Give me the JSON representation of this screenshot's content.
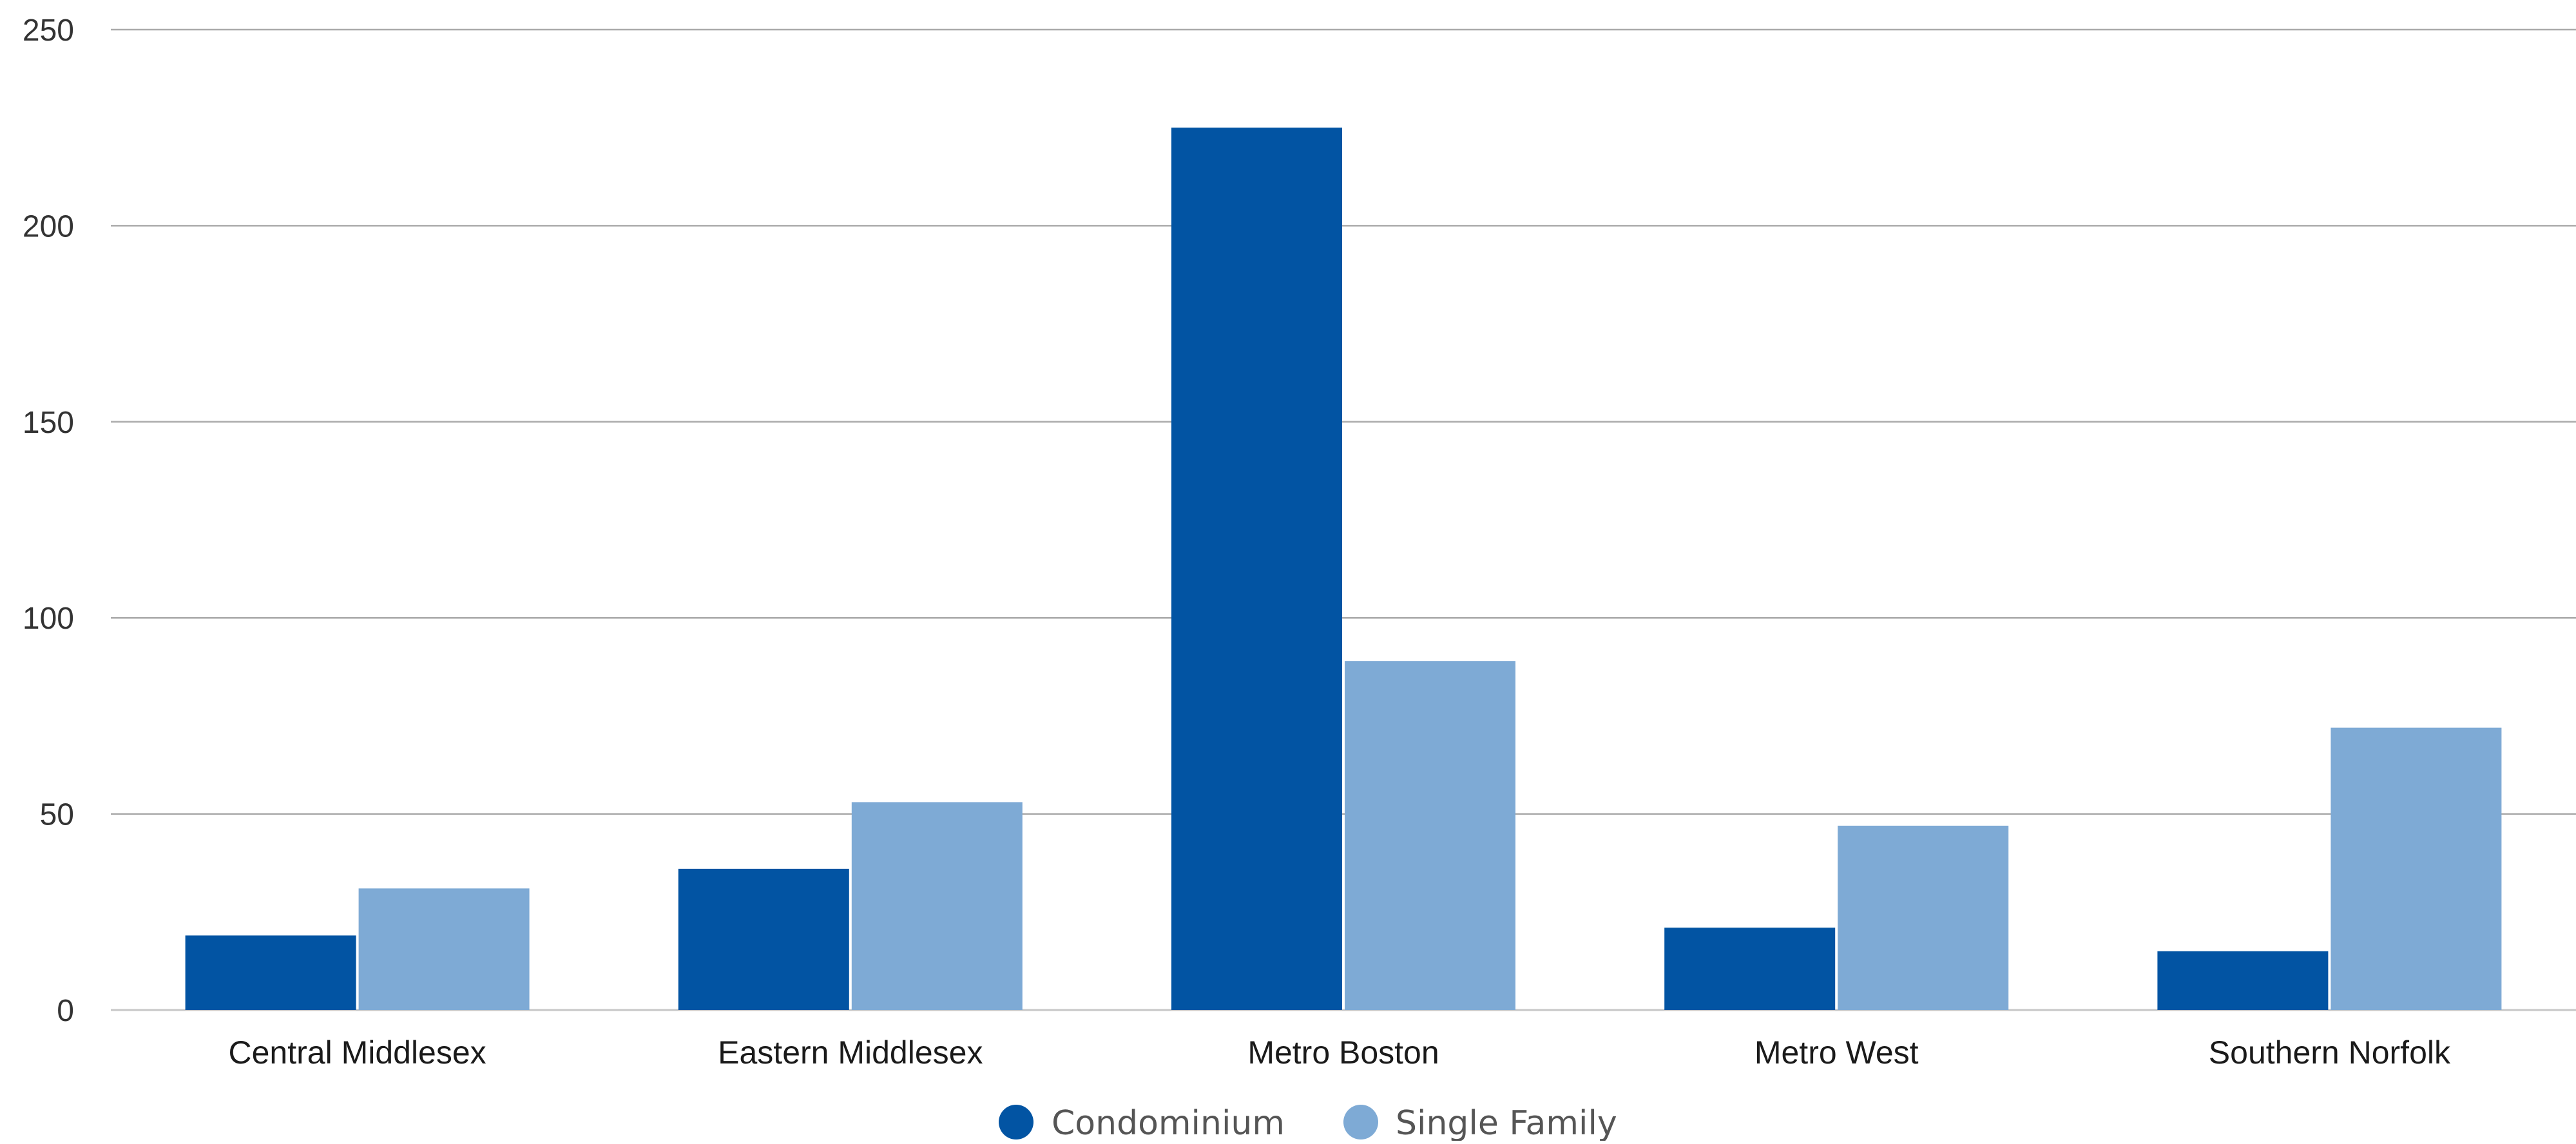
{
  "chart_data": {
    "type": "bar",
    "categories": [
      "Central Middlesex",
      "Eastern Middlesex",
      "Metro Boston",
      "Metro West",
      "Southern Norfolk"
    ],
    "series": [
      {
        "name": "Condominium",
        "values": [
          19,
          36,
          225,
          21,
          15
        ],
        "color": "#0254a3"
      },
      {
        "name": "Single Family",
        "values": [
          31,
          53,
          89,
          47,
          72
        ],
        "color": "#7eaad5"
      }
    ],
    "yticks": [
      "0",
      "50",
      "100",
      "150",
      "200",
      "250"
    ],
    "ylim": [
      0,
      250
    ],
    "grid": true,
    "legend_position": "bottom-center",
    "title": "",
    "xlabel": "",
    "ylabel": ""
  }
}
